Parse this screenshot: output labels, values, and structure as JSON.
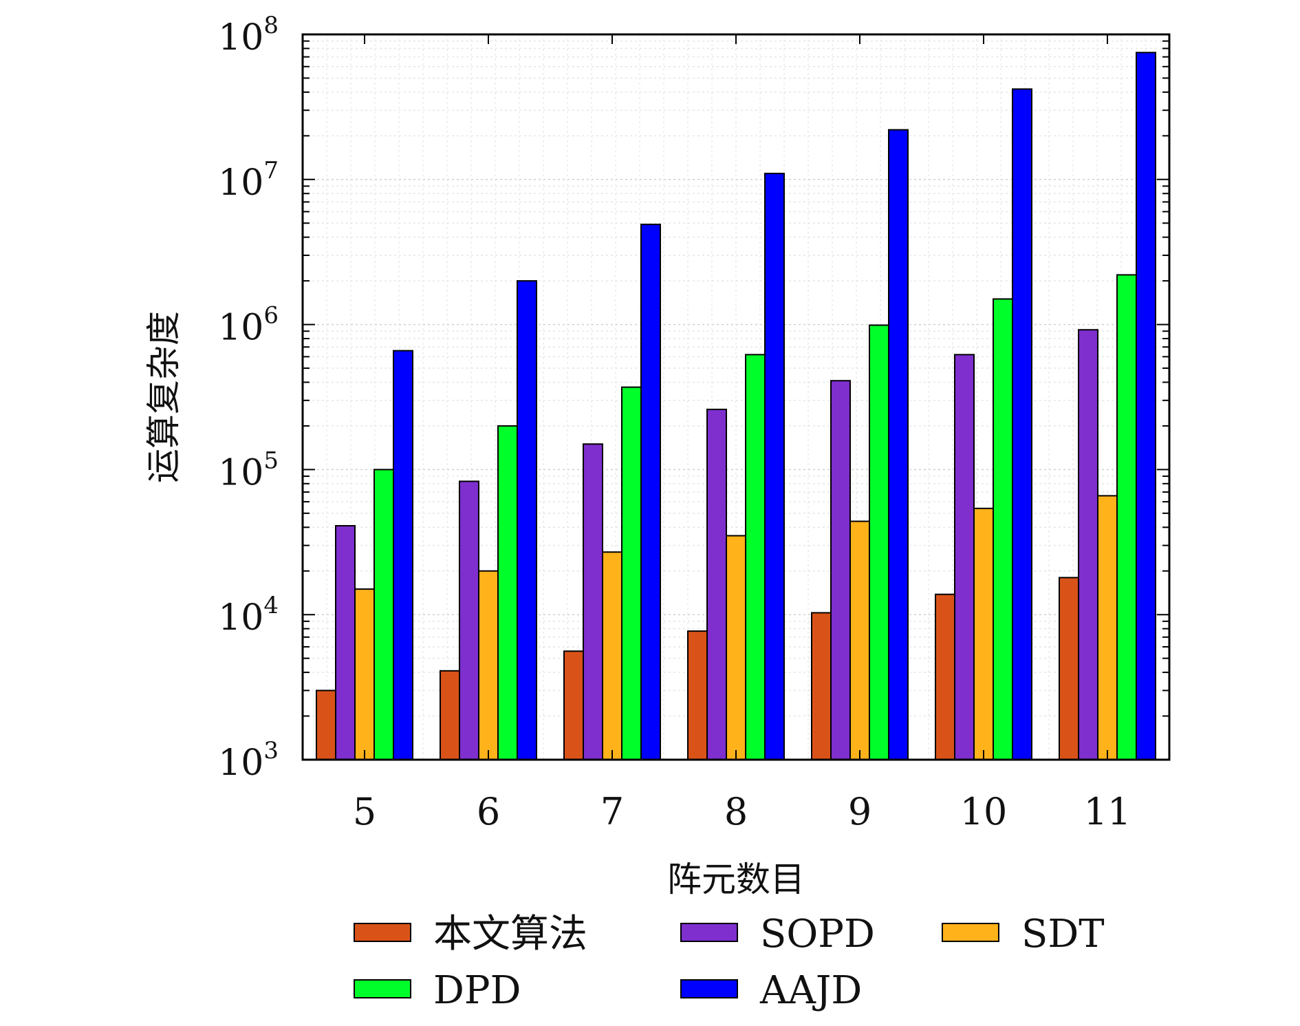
{
  "chart_data": {
    "type": "bar",
    "xlabel": "阵元数目",
    "ylabel": "运算复杂度",
    "categories": [
      "5",
      "6",
      "7",
      "8",
      "9",
      "10",
      "11"
    ],
    "y_scale": "log",
    "ylim": [
      1000,
      100000000
    ],
    "y_ticks": [
      {
        "base": "10",
        "exp": "3"
      },
      {
        "base": "10",
        "exp": "4"
      },
      {
        "base": "10",
        "exp": "5"
      },
      {
        "base": "10",
        "exp": "6"
      },
      {
        "base": "10",
        "exp": "7"
      },
      {
        "base": "10",
        "exp": "8"
      }
    ],
    "grid": true,
    "legend_position": "bottom",
    "series": [
      {
        "name": "本文算法",
        "color": "#D95319",
        "values": [
          3000,
          4100,
          5600,
          7700,
          10300,
          13800,
          18000
        ]
      },
      {
        "name": "SOPD",
        "color": "#7E2FCE",
        "values": [
          41000,
          83000,
          150000,
          260000,
          410000,
          620000,
          920000
        ]
      },
      {
        "name": "SDT",
        "color": "#FFB21A",
        "values": [
          15000,
          20000,
          27000,
          35000,
          44000,
          54000,
          66000
        ]
      },
      {
        "name": "DPD",
        "color": "#00FF2A",
        "values": [
          100000,
          200000,
          370000,
          620000,
          990000,
          1500000,
          2200000
        ]
      },
      {
        "name": "AAJD",
        "color": "#0000FF",
        "values": [
          660000,
          2000000,
          4900000,
          11000000,
          22000000,
          42000000,
          75000000
        ]
      }
    ]
  }
}
